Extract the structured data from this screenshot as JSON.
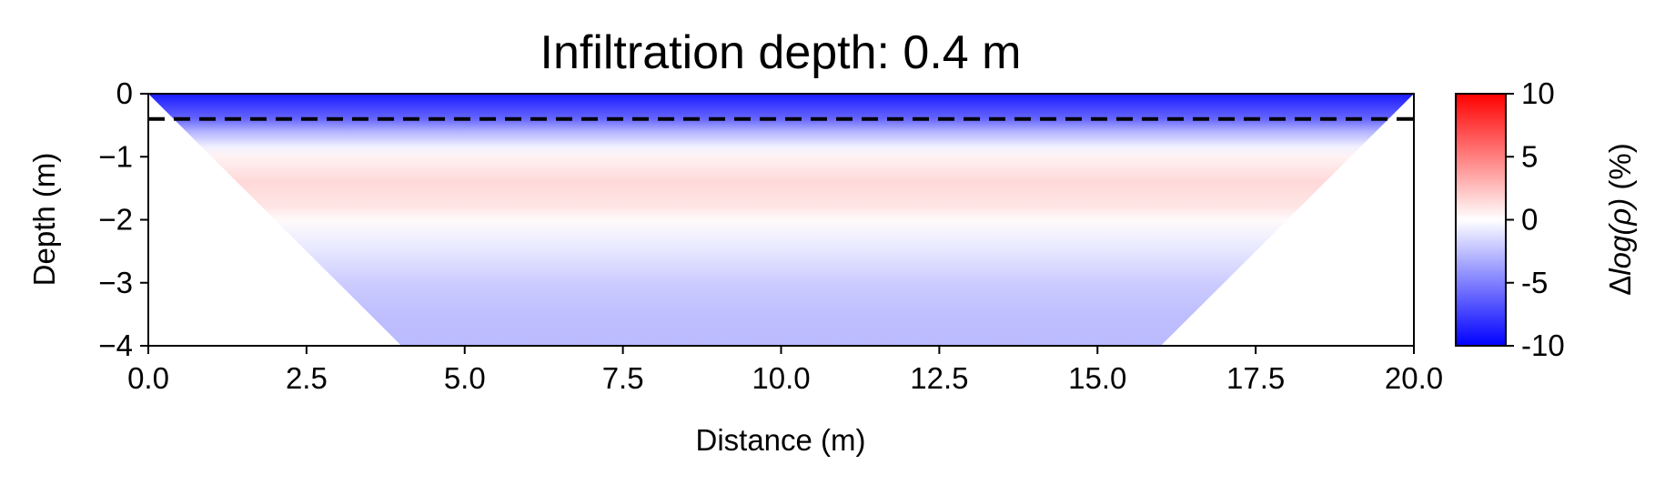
{
  "chart_data": {
    "type": "heatmap",
    "title": "Infiltration depth: 0.4 m",
    "xlabel": "Distance (m)",
    "ylabel": "Depth (m)",
    "xlim": [
      0,
      20
    ],
    "ylim": [
      -4,
      0
    ],
    "x_ticks": [
      0.0,
      2.5,
      5.0,
      7.5,
      10.0,
      12.5,
      15.0,
      17.5,
      20.0
    ],
    "x_tick_labels": [
      "0.0",
      "2.5",
      "5.0",
      "7.5",
      "10.0",
      "12.5",
      "15.0",
      "17.5",
      "20.0"
    ],
    "y_ticks": [
      0,
      -1,
      -2,
      -3,
      -4
    ],
    "y_tick_labels": [
      "0",
      "−1",
      "−2",
      "−3",
      "−4"
    ],
    "colorbar": {
      "label_prefix": "Δ",
      "label_math": "log(ρ)",
      "label_suffix": " (%)",
      "colormap": "bwr",
      "range": [
        -10,
        10
      ],
      "ticks": [
        10,
        5,
        0,
        -5,
        -10
      ],
      "tick_labels": [
        "10",
        "5",
        "0",
        "-5",
        "-10"
      ],
      "color_min": "#0000ff",
      "color_mid": "#ffffff",
      "color_max": "#ff0000"
    },
    "coverage_polygon": [
      [
        0,
        0
      ],
      [
        20,
        0
      ],
      [
        16,
        -4
      ],
      [
        4,
        -4
      ]
    ],
    "depth_profile": {
      "depth": [
        0,
        -0.2,
        -0.4,
        -0.6,
        -0.85,
        -1.0,
        -1.4,
        -1.8,
        -2.0,
        -2.4,
        -3.0,
        -3.5,
        -4.0
      ],
      "value": [
        -9,
        -7.5,
        -6,
        -3,
        -0.5,
        0.5,
        1.5,
        1.0,
        0.2,
        -0.8,
        -2.0,
        -2.5,
        -2.7
      ]
    },
    "infiltration_depth_line": {
      "y": -0.4,
      "x_range": [
        0,
        20
      ],
      "style": "dashed",
      "color": "#000000"
    }
  }
}
